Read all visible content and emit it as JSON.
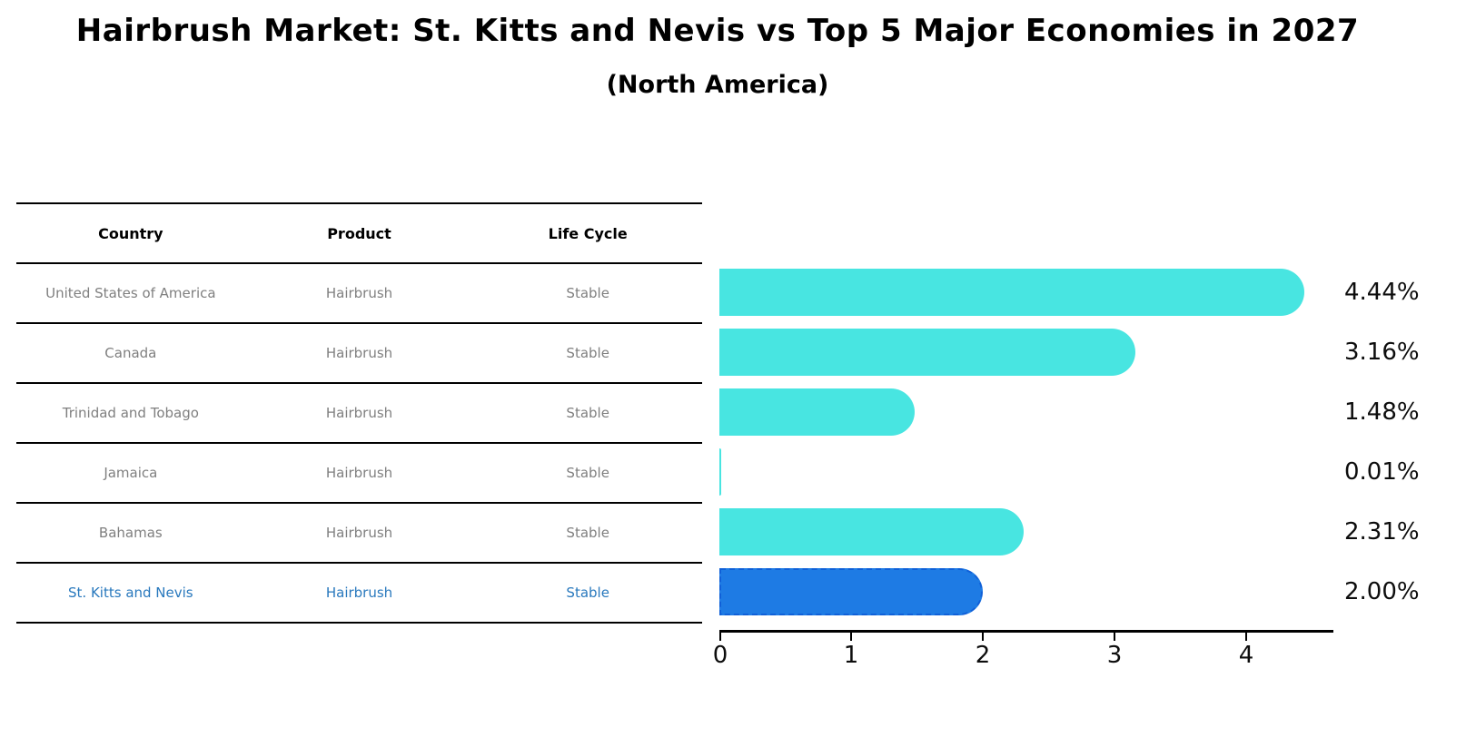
{
  "title": "Hairbrush Market: St. Kitts and Nevis vs Top 5 Major Economies in 2027",
  "subtitle": "(North America)",
  "table": {
    "headers": [
      "Country",
      "Product",
      "Life Cycle"
    ],
    "rows": [
      {
        "country": "United States of America",
        "product": "Hairbrush",
        "life_cycle": "Stable"
      },
      {
        "country": "Canada",
        "product": "Hairbrush",
        "life_cycle": "Stable"
      },
      {
        "country": "Trinidad and Tobago",
        "product": "Hairbrush",
        "life_cycle": "Stable"
      },
      {
        "country": "Jamaica",
        "product": "Hairbrush",
        "life_cycle": "Stable"
      },
      {
        "country": "Bahamas",
        "product": "Hairbrush",
        "life_cycle": "Stable"
      },
      {
        "country": "St. Kitts and Nevis",
        "product": "Hairbrush",
        "life_cycle": "Stable"
      }
    ],
    "highlight_row_index": 5
  },
  "chart_data": {
    "type": "bar",
    "orientation": "horizontal",
    "title": "Hairbrush Market: St. Kitts and Nevis vs Top 5 Major Economies in 2027",
    "subtitle": "(North America)",
    "categories": [
      "United States of America",
      "Canada",
      "Trinidad and Tobago",
      "Jamaica",
      "Bahamas",
      "St. Kitts and Nevis"
    ],
    "values": [
      4.44,
      3.16,
      1.48,
      0.01,
      2.31,
      2.0
    ],
    "value_labels": [
      "4.44%",
      "3.16%",
      "1.48%",
      "0.01%",
      "2.31%",
      "2.00%"
    ],
    "xlabel": "",
    "ylabel": "",
    "xticks": [
      "0",
      "1",
      "2",
      "3",
      "4"
    ],
    "xlim": [
      0,
      4.65
    ],
    "grid": false,
    "legend": false,
    "highlight_index": 5,
    "bar_style": "rounded-right-cap, square-left, highlighted bar has dashed outline"
  },
  "colors": {
    "bar": "#48E5E1",
    "highlight_bar": "#1E7BE4",
    "highlight_border": "#1060D8",
    "table_text": "#7f7f7f",
    "highlight_text": "#2878bd",
    "axis": "#000000"
  }
}
